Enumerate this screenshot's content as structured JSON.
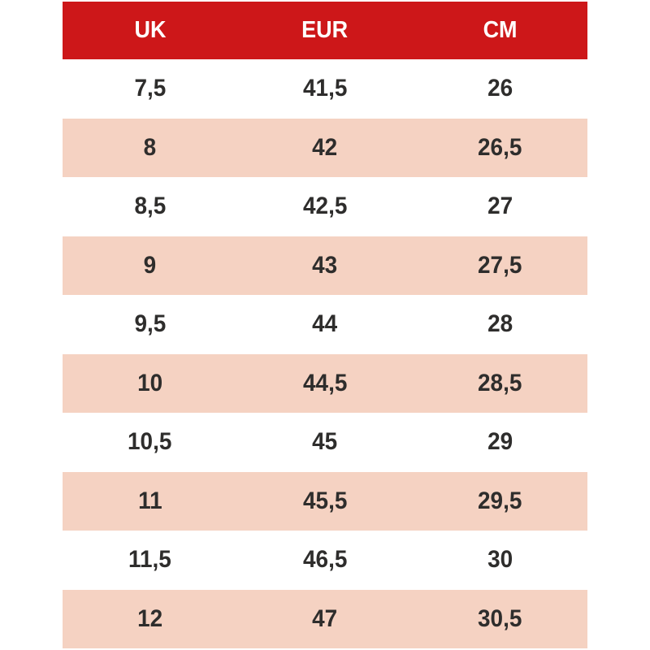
{
  "chart_data": {
    "type": "table",
    "columns": [
      "UK",
      "EUR",
      "CM"
    ],
    "rows": [
      [
        "7,5",
        "41,5",
        "26"
      ],
      [
        "8",
        "42",
        "26,5"
      ],
      [
        "8,5",
        "42,5",
        "27"
      ],
      [
        "9",
        "43",
        "27,5"
      ],
      [
        "9,5",
        "44",
        "28"
      ],
      [
        "10",
        "44,5",
        "28,5"
      ],
      [
        "10,5",
        "45",
        "29"
      ],
      [
        "11",
        "45,5",
        "29,5"
      ],
      [
        "11,5",
        "46,5",
        "30"
      ],
      [
        "12",
        "47",
        "30,5"
      ]
    ],
    "layout_hints": {
      "header_position": "top",
      "alternating_rows": true,
      "first_data_row_background": "white"
    }
  },
  "colors": {
    "header_bg": "#cd1719",
    "header_text": "#ffffff",
    "row_bg_even": "#ffffff",
    "row_bg_odd": "#f5d2c2",
    "cell_text": "#2e2d2c"
  }
}
